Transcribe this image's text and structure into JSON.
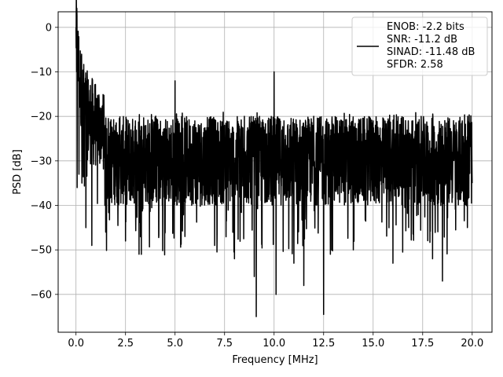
{
  "chart_data": {
    "type": "line",
    "title": "",
    "xlabel": "Frequency [MHz]",
    "ylabel": "PSD [dB]",
    "xlim": [
      -0.9,
      21.0
    ],
    "ylim": [
      -68.5,
      3.5
    ],
    "xticks": [
      0.0,
      2.5,
      5.0,
      7.5,
      10.0,
      12.5,
      15.0,
      17.5,
      20.0
    ],
    "xtick_labels": [
      "0.0",
      "2.5",
      "5.0",
      "7.5",
      "10.0",
      "12.5",
      "15.0",
      "17.5",
      "20.0"
    ],
    "yticks": [
      0,
      -10,
      -20,
      -30,
      -40,
      -50,
      -60
    ],
    "ytick_labels": [
      "0",
      "−10",
      "−20",
      "−30",
      "−40",
      "−50",
      "−60"
    ],
    "grid": true,
    "legend_position": "top-right",
    "line_color": "#000000",
    "series": [
      {
        "legend_lines": [
          "ENOB: -2.2 bits",
          "SNR: -11.2 dB",
          "SINAD: -11.48 dB",
          "SFDR: 2.58"
        ],
        "noise_floor_db": -30,
        "x": [
          0.0,
          0.03,
          0.06,
          0.1,
          0.15,
          0.2,
          0.3,
          0.4,
          0.5,
          0.65,
          0.8,
          1.0,
          1.5,
          2.0,
          2.5,
          3.0,
          3.3,
          4.0,
          4.5,
          5.0,
          5.5,
          6.0,
          7.0,
          7.5,
          8.0,
          8.5,
          9.0,
          9.1,
          9.5,
          10.0,
          10.1,
          10.5,
          11.0,
          11.5,
          12.0,
          12.5,
          13.0,
          14.0,
          15.0,
          16.0,
          17.0,
          18.0,
          18.5,
          19.5,
          20.0
        ],
        "y": [
          0.0,
          -10.0,
          -36.0,
          -12.0,
          -33.0,
          -16.0,
          -35.0,
          -20.0,
          -45.0,
          -23.0,
          -49.0,
          -19.0,
          -46.0,
          -22.0,
          -48.0,
          -21.0,
          -51.0,
          -22.0,
          -46.0,
          -12.0,
          -47.0,
          -21.0,
          -49.0,
          -22.0,
          -52.0,
          -20.0,
          -56.0,
          -65.0,
          -23.0,
          -10.0,
          -60.0,
          -21.0,
          -53.0,
          -58.0,
          -20.0,
          -64.5,
          -22.0,
          -50.0,
          -21.0,
          -53.0,
          -21.0,
          -52.0,
          -57.0,
          -21.0,
          -35.0
        ]
      }
    ]
  }
}
